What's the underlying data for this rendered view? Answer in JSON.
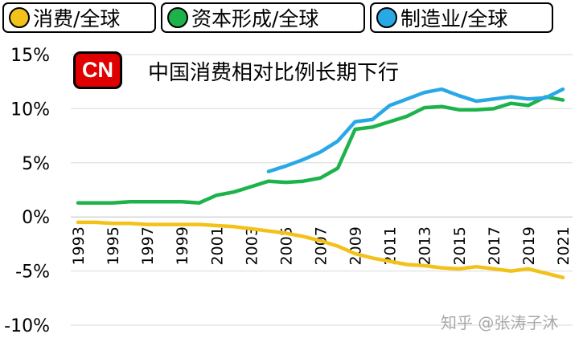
{
  "legend": [
    {
      "label": "消费/全球",
      "color": "#f2c21a"
    },
    {
      "label": "资本形成/全球",
      "color": "#1db34a"
    },
    {
      "label": "制造业/全球",
      "color": "#29a8e6"
    }
  ],
  "badge": "CN",
  "watermark": "知乎 @张涛子沐",
  "chart_data": {
    "type": "line",
    "title": "中国消费相对比例长期下行",
    "xlabel": "",
    "ylabel": "",
    "ylim": [
      -10,
      15
    ],
    "xlim": [
      1993,
      2021
    ],
    "grid": "horizontal",
    "y_ticks": [
      "15%",
      "10%",
      "5%",
      "0%",
      "-5%",
      "-10%"
    ],
    "y_tick_values": [
      15,
      10,
      5,
      0,
      -5,
      -10
    ],
    "x_ticks": [
      "1993",
      "1995",
      "1997",
      "1999",
      "2001",
      "2003",
      "2005",
      "2007",
      "2009",
      "2011",
      "2013",
      "2015",
      "2017",
      "2019",
      "2021"
    ],
    "series": [
      {
        "name": "消费/全球",
        "color": "#f2c21a",
        "x": [
          1993,
          1994,
          1995,
          1996,
          1997,
          1998,
          1999,
          2000,
          2001,
          2002,
          2003,
          2004,
          2005,
          2006,
          2007,
          2008,
          2009,
          2010,
          2011,
          2012,
          2013,
          2014,
          2015,
          2016,
          2017,
          2018,
          2019,
          2020,
          2021
        ],
        "y": [
          -0.5,
          -0.5,
          -0.6,
          -0.6,
          -0.7,
          -0.7,
          -0.7,
          -0.7,
          -0.8,
          -0.9,
          -1.1,
          -1.3,
          -1.5,
          -1.8,
          -2.2,
          -2.7,
          -3.4,
          -3.8,
          -4.1,
          -4.4,
          -4.5,
          -4.7,
          -4.8,
          -4.6,
          -4.8,
          -5.0,
          -4.8,
          -5.2,
          -5.6
        ]
      },
      {
        "name": "资本形成/全球",
        "color": "#1db34a",
        "x": [
          1993,
          1994,
          1995,
          1996,
          1997,
          1998,
          1999,
          2000,
          2001,
          2002,
          2003,
          2004,
          2005,
          2006,
          2007,
          2008,
          2009,
          2010,
          2011,
          2012,
          2013,
          2014,
          2015,
          2016,
          2017,
          2018,
          2019,
          2020,
          2021
        ],
        "y": [
          1.3,
          1.3,
          1.3,
          1.4,
          1.4,
          1.4,
          1.4,
          1.3,
          2.0,
          2.3,
          2.8,
          3.3,
          3.2,
          3.3,
          3.6,
          4.5,
          8.1,
          8.3,
          8.8,
          9.3,
          10.1,
          10.2,
          9.9,
          9.9,
          10.0,
          10.5,
          10.3,
          11.1,
          10.8
        ]
      },
      {
        "name": "制造业/全球",
        "color": "#29a8e6",
        "x": [
          2004,
          2005,
          2006,
          2007,
          2008,
          2009,
          2010,
          2011,
          2012,
          2013,
          2014,
          2015,
          2016,
          2017,
          2018,
          2019,
          2020,
          2021
        ],
        "y": [
          4.2,
          4.7,
          5.3,
          6.0,
          7.0,
          8.8,
          9.0,
          10.3,
          10.9,
          11.5,
          11.8,
          11.2,
          10.7,
          10.9,
          11.1,
          10.9,
          11.0,
          11.8
        ]
      }
    ]
  }
}
